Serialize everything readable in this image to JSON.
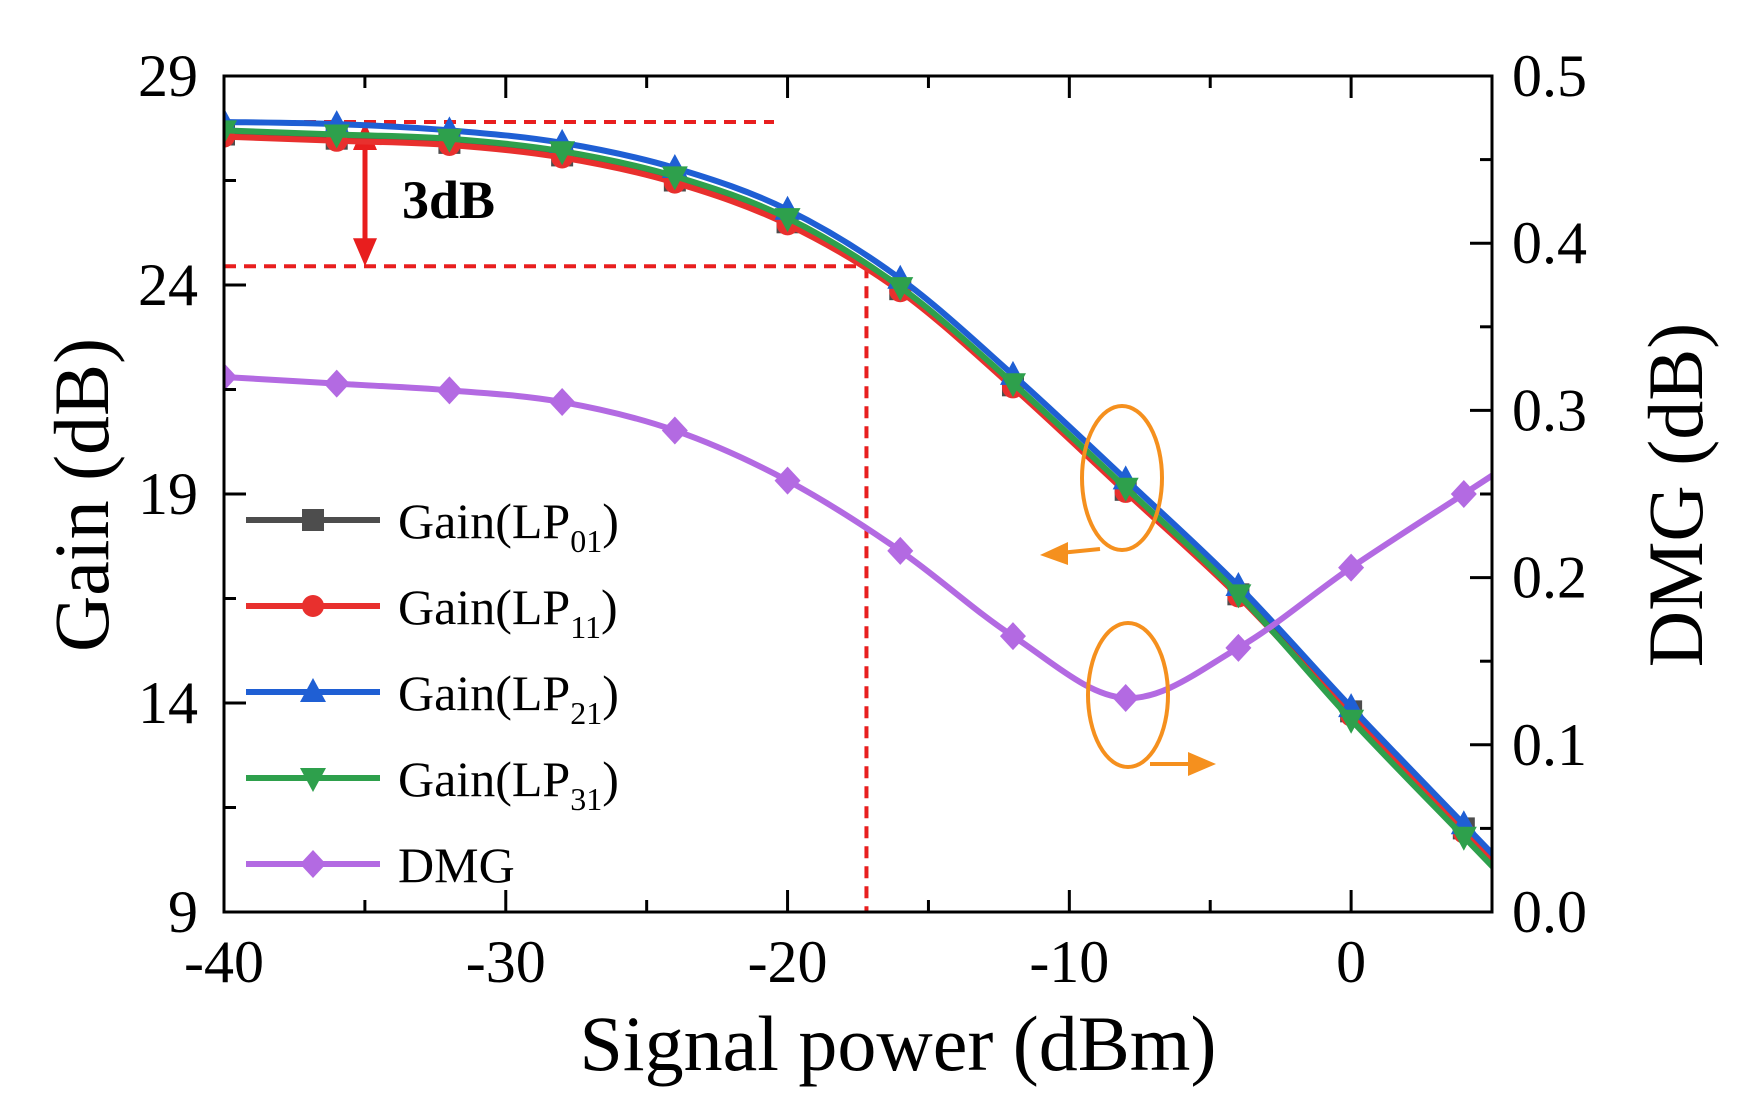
{
  "chart_data": {
    "type": "line",
    "title": "",
    "xlabel": "Signal power (dBm)",
    "ylabel_left": "Gain (dB)",
    "ylabel_right": "DMG (dB)",
    "xlim": [
      -40,
      5
    ],
    "ylim_left": [
      9,
      29
    ],
    "ylim_right": [
      0.0,
      0.5
    ],
    "x_ticks": [
      -40,
      -30,
      -20,
      -10,
      0
    ],
    "x_tick_labels": [
      "-40",
      "-30",
      "-20",
      "-10",
      "0"
    ],
    "y_left_ticks": [
      9,
      14,
      19,
      24,
      29
    ],
    "y_left_tick_labels": [
      "9",
      "14",
      "19",
      "24",
      "29"
    ],
    "y_right_ticks": [
      0.0,
      0.1,
      0.2,
      0.3,
      0.4,
      0.5
    ],
    "y_right_tick_labels": [
      "0.0",
      "0.1",
      "0.2",
      "0.3",
      "0.4",
      "0.5"
    ],
    "x": [
      -40,
      -36,
      -32,
      -28,
      -24,
      -20,
      -16,
      -12,
      -8,
      -4,
      0,
      4
    ],
    "series": [
      {
        "name": "Gain(LP01)",
        "label_main": "Gain(LP",
        "label_sub": "01",
        "label_end": ")",
        "axis": "left",
        "marker": "square",
        "color": "#4d4d4d",
        "values": [
          27.6,
          27.5,
          27.4,
          27.1,
          26.5,
          25.5,
          23.9,
          21.6,
          19.1,
          16.6,
          13.8,
          11.0
        ]
      },
      {
        "name": "Gain(LP11)",
        "label_main": "Gain(LP",
        "label_sub": "11",
        "label_end": ")",
        "axis": "left",
        "marker": "circle",
        "color": "#e8302e",
        "values": [
          27.55,
          27.45,
          27.35,
          27.05,
          26.45,
          25.45,
          23.85,
          21.55,
          19.05,
          16.55,
          13.7,
          10.9
        ]
      },
      {
        "name": "Gain(LP21)",
        "label_main": "Gain(LP",
        "label_sub": "21",
        "label_end": ")",
        "axis": "left",
        "marker": "triangle-up",
        "color": "#1f5fd4",
        "values": [
          27.9,
          27.85,
          27.7,
          27.4,
          26.8,
          25.8,
          24.15,
          21.85,
          19.35,
          16.8,
          13.9,
          11.1
        ]
      },
      {
        "name": "Gain(LP31)",
        "label_main": "Gain(LP",
        "label_sub": "31",
        "label_end": ")",
        "axis": "left",
        "marker": "triangle-down",
        "color": "#2ea04c",
        "values": [
          27.7,
          27.6,
          27.5,
          27.2,
          26.6,
          25.6,
          23.95,
          21.65,
          19.15,
          16.6,
          13.6,
          10.8
        ]
      },
      {
        "name": "DMG",
        "label_main": "DMG",
        "label_sub": "",
        "label_end": "",
        "axis": "right",
        "marker": "diamond",
        "color": "#b36ae2",
        "values": [
          0.32,
          0.316,
          0.312,
          0.305,
          0.288,
          0.258,
          0.216,
          0.165,
          0.128,
          0.158,
          0.206,
          0.25
        ]
      }
    ],
    "legend_position": "lower-left",
    "annotations": {
      "drop_label": "3dB",
      "ref_level_high": 27.9,
      "ref_level_low": 24.45,
      "ref_x": -17.2
    }
  },
  "colors": {
    "annotation_red": "#e81e1e",
    "annotation_orange": "#f5901e",
    "axis": "#000000"
  }
}
